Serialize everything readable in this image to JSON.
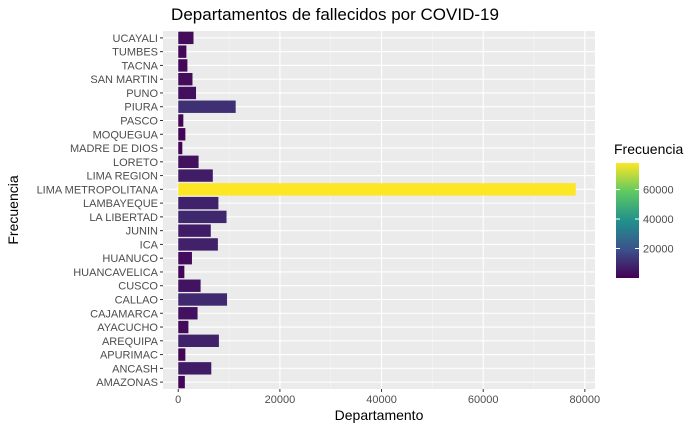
{
  "chart_data": {
    "type": "bar",
    "orientation": "horizontal",
    "title": "Departamentos de fallecidos por COVID-19",
    "xlabel": "Departamento",
    "ylabel": "Frecuencia",
    "xlim": [
      -3000,
      82000
    ],
    "xticks": [
      0,
      20000,
      40000,
      60000,
      80000
    ],
    "grid": true,
    "legend": {
      "title": "Frecuencia",
      "placement": "right",
      "type": "colorbar",
      "range": [
        0,
        78000
      ],
      "ticks": [
        20000,
        40000,
        60000
      ],
      "colormap": "viridis"
    },
    "categories": [
      "AMAZONAS",
      "ANCASH",
      "APURIMAC",
      "AREQUIPA",
      "AYACUCHO",
      "CAJAMARCA",
      "CALLAO",
      "CUSCO",
      "HUANCAVELICA",
      "HUANUCO",
      "ICA",
      "JUNIN",
      "LA LIBERTAD",
      "LAMBAYEQUE",
      "LIMA METROPOLITANA",
      "LIMA REGION",
      "LORETO",
      "MADRE DE DIOS",
      "MOQUEGUA",
      "PASCO",
      "PIURA",
      "PUNO",
      "SAN MARTIN",
      "TACNA",
      "TUMBES",
      "UCAYALI"
    ],
    "values": [
      1300,
      6500,
      1400,
      8000,
      2000,
      3800,
      9600,
      4400,
      1200,
      2700,
      7800,
      6400,
      9500,
      7900,
      78200,
      6800,
      4000,
      800,
      1400,
      1000,
      11300,
      3500,
      2800,
      1800,
      1600,
      3000
    ]
  }
}
